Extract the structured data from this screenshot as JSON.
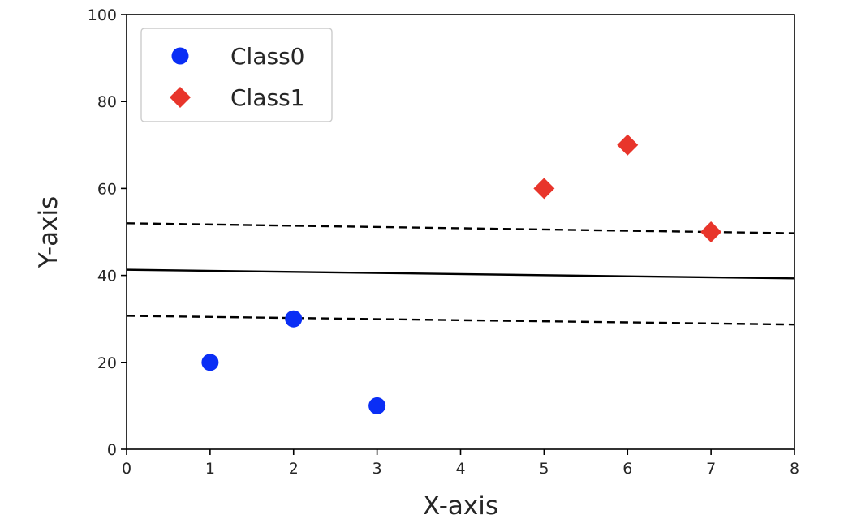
{
  "chart_data": {
    "type": "scatter",
    "title": "",
    "xlabel": "X-axis",
    "ylabel": "Y-axis",
    "xlim": [
      0,
      8
    ],
    "ylim": [
      0,
      100
    ],
    "xticks": [
      0,
      1,
      2,
      3,
      4,
      5,
      6,
      7,
      8
    ],
    "yticks": [
      0,
      20,
      40,
      60,
      80,
      100
    ],
    "grid": false,
    "legend_position": "top-left",
    "series": [
      {
        "name": "Class0",
        "marker": "circle",
        "color": "#0a2ef5",
        "points": [
          {
            "x": 1,
            "y": 20
          },
          {
            "x": 2,
            "y": 30
          },
          {
            "x": 3,
            "y": 10
          }
        ]
      },
      {
        "name": "Class1",
        "marker": "diamond",
        "color": "#e8352b",
        "points": [
          {
            "x": 5,
            "y": 60
          },
          {
            "x": 6,
            "y": 70
          },
          {
            "x": 7,
            "y": 50
          }
        ]
      }
    ],
    "lines": [
      {
        "style": "solid",
        "color": "#000000",
        "x": [
          0,
          8
        ],
        "y": [
          41.3,
          39.3
        ]
      },
      {
        "style": "dashed",
        "color": "#000000",
        "x": [
          0,
          8
        ],
        "y": [
          52.0,
          49.7
        ]
      },
      {
        "style": "dashed",
        "color": "#000000",
        "x": [
          0,
          8
        ],
        "y": [
          30.7,
          28.7
        ]
      }
    ]
  }
}
